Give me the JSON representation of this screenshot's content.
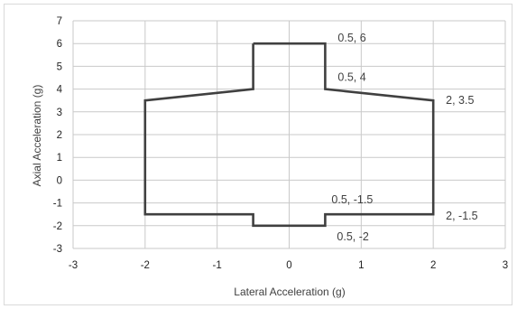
{
  "chart_data": {
    "type": "line",
    "title": "",
    "xlabel": "Lateral Acceleration (g)",
    "ylabel": "Axial Acceleration (g)",
    "xlim": [
      -3,
      3
    ],
    "ylim": [
      -3,
      7
    ],
    "x_ticks": [
      -3,
      -2,
      -1,
      0,
      1,
      2,
      3
    ],
    "y_ticks": [
      -3,
      -2,
      -1,
      0,
      1,
      2,
      3,
      4,
      5,
      6,
      7
    ],
    "grid": true,
    "legend": "none",
    "series": [
      {
        "color": "#404040",
        "points": [
          [
            -0.5,
            6
          ],
          [
            0.5,
            6
          ],
          [
            0.5,
            4
          ],
          [
            2,
            3.5
          ],
          [
            2,
            -1.5
          ],
          [
            0.5,
            -1.5
          ],
          [
            0.5,
            -2
          ],
          [
            -0.5,
            -2
          ],
          [
            -0.5,
            -1.5
          ],
          [
            -2,
            -1.5
          ],
          [
            -2,
            3.5
          ],
          [
            -0.5,
            4
          ],
          [
            -0.5,
            6
          ]
        ]
      }
    ],
    "annotations": [
      {
        "text": "0.5, 6",
        "x": 0.5,
        "y": 6
      },
      {
        "text": "0.5, 4",
        "x": 0.5,
        "y": 4
      },
      {
        "text": "2, 3.5",
        "x": 2,
        "y": 3.5
      },
      {
        "text": "0.5, -1.5",
        "x": 0.5,
        "y": -1.5
      },
      {
        "text": "2, -1.5",
        "x": 2,
        "y": -1.5
      },
      {
        "text": "0.5, -2",
        "x": 0.5,
        "y": -2
      }
    ]
  }
}
